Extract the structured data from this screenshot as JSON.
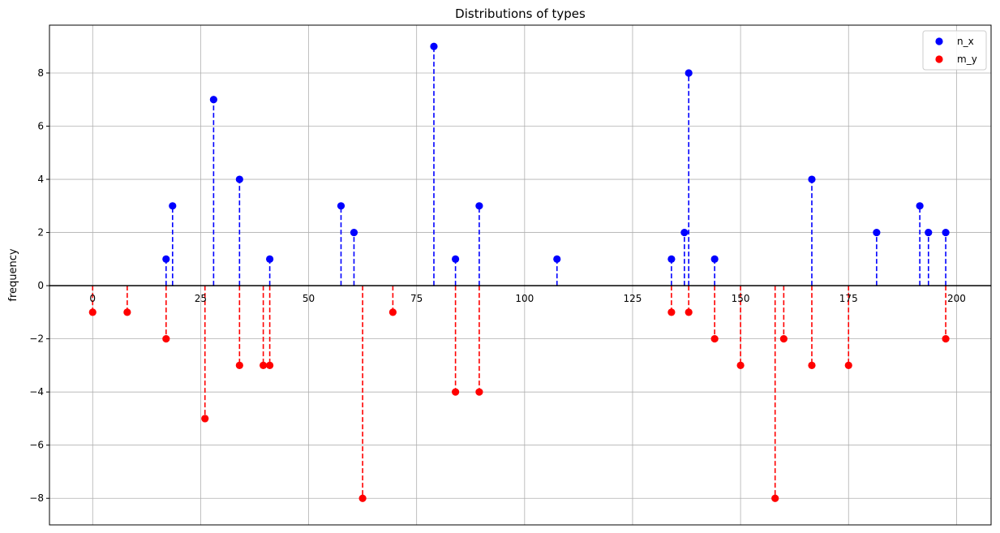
{
  "chart_data": {
    "type": "stem",
    "title": "Distributions of types",
    "xlabel": "",
    "ylabel": "frequency",
    "xlim": [
      -10,
      208
    ],
    "ylim": [
      -9,
      9.8
    ],
    "xticks": [
      0,
      25,
      50,
      75,
      100,
      125,
      150,
      175,
      200
    ],
    "yticks": [
      -8,
      -6,
      -4,
      -2,
      0,
      2,
      4,
      6,
      8
    ],
    "grid": true,
    "legend_position": "top-right",
    "series": [
      {
        "name": "n_x",
        "color": "#0000ff",
        "line_style": "dashed",
        "marker": "circle",
        "points": [
          {
            "x": 17,
            "y": 1
          },
          {
            "x": 18.5,
            "y": 3
          },
          {
            "x": 28,
            "y": 7
          },
          {
            "x": 34,
            "y": 4
          },
          {
            "x": 41,
            "y": 1
          },
          {
            "x": 57.5,
            "y": 3
          },
          {
            "x": 60.5,
            "y": 2
          },
          {
            "x": 79,
            "y": 9
          },
          {
            "x": 84,
            "y": 1
          },
          {
            "x": 89.5,
            "y": 3
          },
          {
            "x": 107.5,
            "y": 1
          },
          {
            "x": 134,
            "y": 1
          },
          {
            "x": 137,
            "y": 2
          },
          {
            "x": 138,
            "y": 8
          },
          {
            "x": 144,
            "y": 1
          },
          {
            "x": 166.5,
            "y": 4
          },
          {
            "x": 181.5,
            "y": 2
          },
          {
            "x": 191.5,
            "y": 3
          },
          {
            "x": 193.5,
            "y": 2
          },
          {
            "x": 197.5,
            "y": 2
          }
        ]
      },
      {
        "name": "m_y",
        "color": "#ff0000",
        "line_style": "dashed",
        "marker": "circle",
        "points": [
          {
            "x": 0,
            "y": -1
          },
          {
            "x": 8,
            "y": -1
          },
          {
            "x": 17,
            "y": -2
          },
          {
            "x": 26,
            "y": -5
          },
          {
            "x": 34,
            "y": -3
          },
          {
            "x": 39.5,
            "y": -3
          },
          {
            "x": 41,
            "y": -3
          },
          {
            "x": 62.5,
            "y": -8
          },
          {
            "x": 69.5,
            "y": -1
          },
          {
            "x": 84,
            "y": -4
          },
          {
            "x": 89.5,
            "y": -4
          },
          {
            "x": 134,
            "y": -1
          },
          {
            "x": 138,
            "y": -1
          },
          {
            "x": 144,
            "y": -2
          },
          {
            "x": 150,
            "y": -3
          },
          {
            "x": 158,
            "y": -8
          },
          {
            "x": 160,
            "y": -2
          },
          {
            "x": 166.5,
            "y": -3
          },
          {
            "x": 175,
            "y": -3
          },
          {
            "x": 197.5,
            "y": -2
          }
        ]
      }
    ]
  }
}
